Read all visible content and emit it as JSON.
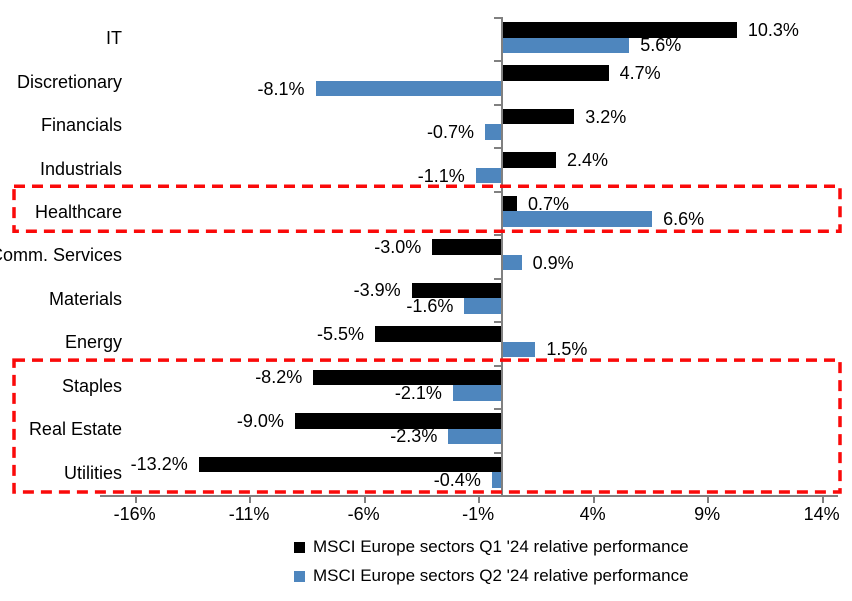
{
  "chart_data": {
    "type": "bar",
    "orientation": "horizontal",
    "title": "",
    "categories": [
      "IT",
      "Discretionary",
      "Financials",
      "Industrials",
      "Healthcare",
      "Comm. Services",
      "Materials",
      "Energy",
      "Staples",
      "Real Estate",
      "Utilities"
    ],
    "series": [
      {
        "name": "MSCI Europe sectors Q1 '24 relative performance",
        "color": "#000000",
        "values": [
          10.3,
          4.7,
          3.2,
          2.4,
          0.7,
          -3.0,
          -3.9,
          -5.5,
          -8.2,
          -9.0,
          -13.2
        ],
        "labels": [
          "10.3%",
          "4.7%",
          "3.2%",
          "2.4%",
          "0.7%",
          "-3.0%",
          "-3.9%",
          "-5.5%",
          "-8.2%",
          "-9.0%",
          "-13.2%"
        ]
      },
      {
        "name": "MSCI Europe sectors Q2 '24 relative performance",
        "color": "#4E86BE",
        "values": [
          5.6,
          -8.1,
          -0.7,
          -1.1,
          6.6,
          0.9,
          -1.6,
          1.5,
          -2.1,
          -2.3,
          -0.4
        ],
        "labels": [
          "5.6%",
          "-8.1%",
          "-0.7%",
          "-1.1%",
          "6.6%",
          "0.9%",
          "-1.6%",
          "1.5%",
          "-2.1%",
          "-2.3%",
          "-0.4%"
        ]
      }
    ],
    "x_axis": {
      "ticks": [
        {
          "label": "-16%",
          "value": -16
        },
        {
          "label": "-11%",
          "value": -11
        },
        {
          "label": "-6%",
          "value": -6
        },
        {
          "label": "-1%",
          "value": -1
        },
        {
          "label": "4%",
          "value": 4
        },
        {
          "label": "9%",
          "value": 9
        },
        {
          "label": "14%",
          "value": 14
        }
      ],
      "min": -17.5,
      "max": 14.8
    },
    "ylabel": "",
    "xlabel": "",
    "grid": false,
    "legend_position": "bottom",
    "axis_color": "#808080",
    "highlights": {
      "color": "#FA0A0A",
      "style": "dashed",
      "groups": [
        {
          "categories": [
            "Healthcare"
          ]
        },
        {
          "categories": [
            "Staples",
            "Real Estate",
            "Utilities"
          ]
        }
      ]
    }
  }
}
